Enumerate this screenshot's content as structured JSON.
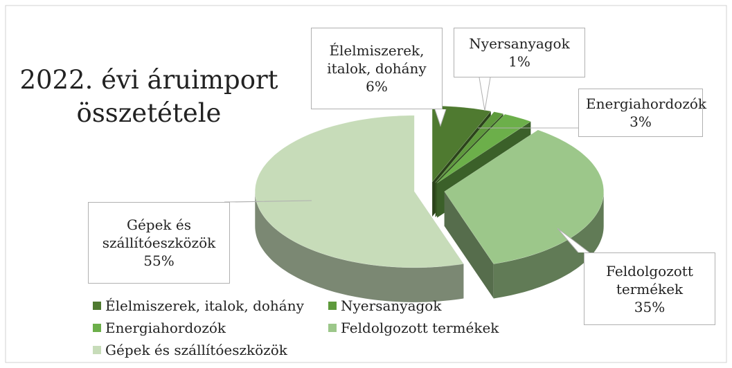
{
  "chart_data": {
    "type": "pie",
    "title": "2022. évi áruimport összetétele",
    "categories": [
      "Élelmiszerek, italok, dohány",
      "Nyersanyagok",
      "Energiahordozók",
      "Feldolgozott termékek",
      "Gépek és szállítóeszközök"
    ],
    "values": [
      6,
      1,
      3,
      35,
      55
    ],
    "value_labels": [
      "6%",
      "1%",
      "3%",
      "35%",
      "55%"
    ],
    "colors": [
      "#4f7a30",
      "#5e9a3c",
      "#6caf4a",
      "#9cc78a",
      "#c7dcb9"
    ],
    "legend": "bottom"
  }
}
